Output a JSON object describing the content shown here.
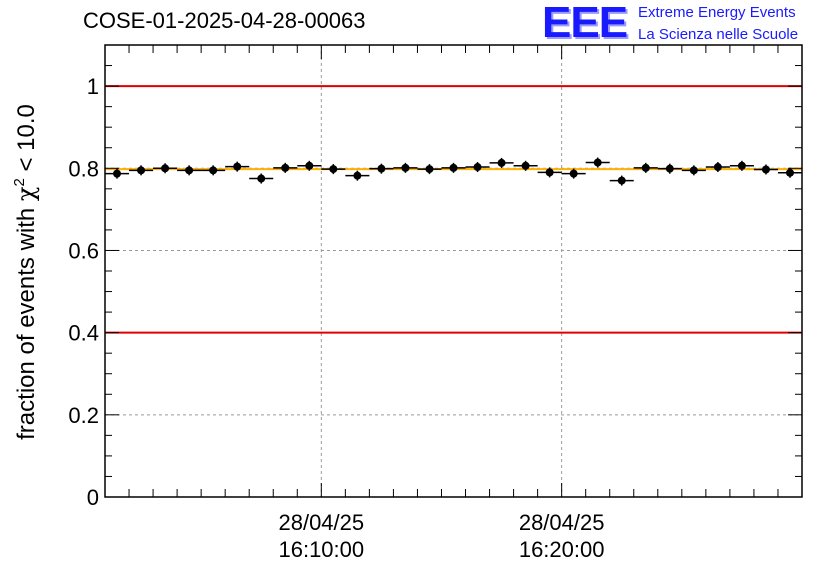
{
  "header": {
    "run_id": "COSE-01-2025-04-28-00063"
  },
  "logo": {
    "mark": "EEE",
    "line1": "Extreme Energy Events",
    "line2": "La Scienza nelle Scuole"
  },
  "chart_data": {
    "type": "scatter",
    "ylabel_prefix": "fraction of events with ",
    "ylabel_symbol": "χ",
    "ylabel_superscript": "2",
    "ylabel_suffix": " < 10.0",
    "ylim": [
      0,
      1.1
    ],
    "yticks": [
      0,
      0.2,
      0.4,
      0.6,
      0.8,
      1
    ],
    "ytick_labels": [
      "0",
      "0.2",
      "0.4",
      "0.6",
      "0.8",
      "1"
    ],
    "xlim": [
      0,
      29
    ],
    "xtick_labels": [
      {
        "x": 9,
        "date": "28/04/25",
        "time": "16:10:00"
      },
      {
        "x": 19,
        "date": "28/04/25",
        "time": "16:20:00"
      }
    ],
    "grid": true,
    "reference_lines": [
      {
        "y": 1.0,
        "color": "#e00000"
      },
      {
        "y": 0.4,
        "color": "#e00000"
      }
    ],
    "fit_line": {
      "y": 0.798,
      "color": "#ffb000"
    },
    "points": [
      {
        "x": 0.5,
        "y": 0.787
      },
      {
        "x": 1.5,
        "y": 0.795
      },
      {
        "x": 2.5,
        "y": 0.8
      },
      {
        "x": 3.5,
        "y": 0.795
      },
      {
        "x": 4.5,
        "y": 0.795
      },
      {
        "x": 5.5,
        "y": 0.804
      },
      {
        "x": 6.5,
        "y": 0.775
      },
      {
        "x": 7.5,
        "y": 0.801
      },
      {
        "x": 8.5,
        "y": 0.806
      },
      {
        "x": 9.5,
        "y": 0.798
      },
      {
        "x": 10.5,
        "y": 0.782
      },
      {
        "x": 11.5,
        "y": 0.799
      },
      {
        "x": 12.5,
        "y": 0.801
      },
      {
        "x": 13.5,
        "y": 0.798
      },
      {
        "x": 14.5,
        "y": 0.801
      },
      {
        "x": 15.5,
        "y": 0.803
      },
      {
        "x": 16.5,
        "y": 0.813
      },
      {
        "x": 17.5,
        "y": 0.806
      },
      {
        "x": 18.5,
        "y": 0.79
      },
      {
        "x": 19.5,
        "y": 0.787
      },
      {
        "x": 20.5,
        "y": 0.814
      },
      {
        "x": 21.5,
        "y": 0.77
      },
      {
        "x": 22.5,
        "y": 0.801
      },
      {
        "x": 23.5,
        "y": 0.799
      },
      {
        "x": 24.5,
        "y": 0.795
      },
      {
        "x": 25.5,
        "y": 0.803
      },
      {
        "x": 26.5,
        "y": 0.806
      },
      {
        "x": 27.5,
        "y": 0.797
      },
      {
        "x": 28.5,
        "y": 0.789
      }
    ],
    "point_color": "#000000"
  }
}
